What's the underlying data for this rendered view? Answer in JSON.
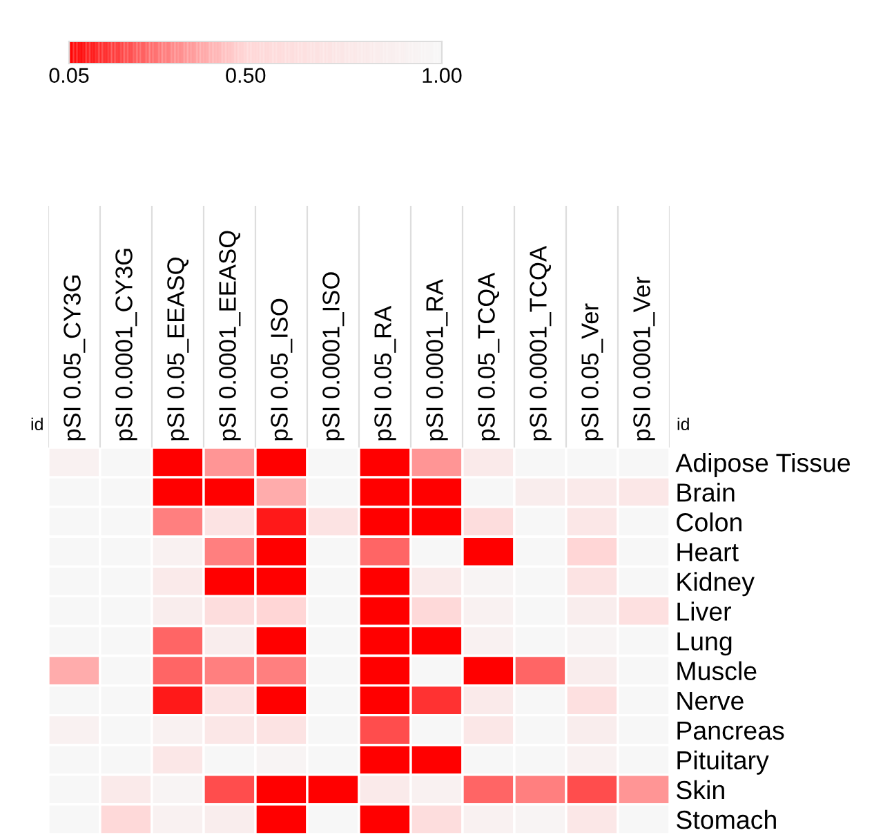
{
  "chart_data": {
    "type": "heatmap",
    "categories": [
      "pSI 0.05_CY3G",
      "pSI 0.0001_CY3G",
      "pSI 0.05_EEASQ",
      "pSI 0.0001_EEASQ",
      "pSI 0.05_ISO",
      "pSI 0.0001_ISO",
      "pSI 0.05_RA",
      "pSI 0.0001_RA",
      "pSI 0.05_TCQA",
      "pSI 0.0001_TCQA",
      "pSI 0.05_Ver",
      "pSI 0.0001_Ver"
    ],
    "y_categories": [
      "Adipose Tissue",
      "Brain",
      "Colon",
      "Heart",
      "Kidney",
      "Liver",
      "Lung",
      "Muscle",
      "Nerve",
      "Pancreas",
      "Pituitary",
      "Skin",
      "Stomach"
    ],
    "cells": [
      [
        0.9,
        1,
        0.05,
        0.35,
        0.05,
        1,
        0.05,
        0.35,
        0.8,
        1,
        1,
        1
      ],
      [
        1,
        1,
        0.05,
        0.05,
        0.4,
        1,
        0.05,
        0.05,
        1,
        0.85,
        0.8,
        0.75
      ],
      [
        1,
        1,
        0.3,
        0.7,
        0.1,
        0.7,
        0.05,
        0.05,
        0.6,
        1,
        0.75,
        1
      ],
      [
        1,
        1,
        0.9,
        0.3,
        0.05,
        1,
        0.25,
        1,
        0.05,
        1,
        0.5,
        1
      ],
      [
        1,
        1,
        0.8,
        0.05,
        0.05,
        1,
        0.05,
        0.8,
        0.95,
        1,
        0.7,
        1
      ],
      [
        1,
        1,
        0.85,
        0.6,
        0.5,
        1,
        0.05,
        0.55,
        0.9,
        1,
        0.85,
        0.65
      ],
      [
        1,
        1,
        0.25,
        0.85,
        0.05,
        1,
        0.05,
        0.05,
        0.9,
        1,
        0.95,
        1
      ],
      [
        0.4,
        1,
        0.25,
        0.3,
        0.3,
        1,
        0.05,
        1,
        0.05,
        0.25,
        0.85,
        1
      ],
      [
        1,
        1,
        0.1,
        0.7,
        0.05,
        1,
        0.05,
        0.15,
        0.8,
        1,
        0.65,
        1
      ],
      [
        0.9,
        1,
        0.9,
        0.75,
        0.7,
        1,
        0.2,
        1,
        0.75,
        1,
        0.85,
        1
      ],
      [
        1,
        1,
        0.75,
        1,
        0.95,
        1,
        0.05,
        0.05,
        1,
        1,
        0.9,
        1
      ],
      [
        1,
        0.8,
        0.95,
        0.2,
        0.05,
        0.05,
        0.8,
        0.9,
        0.25,
        0.3,
        0.2,
        0.35
      ],
      [
        1,
        0.55,
        0.9,
        0.85,
        0.05,
        1,
        0.05,
        0.6,
        0.9,
        0.95,
        0.75,
        1
      ]
    ],
    "clim": [
      0.05,
      1.0
    ],
    "cticks": [
      {
        "value": 0.05,
        "label": "0.05"
      },
      {
        "value": 0.5,
        "label": "0.50"
      },
      {
        "value": 1.0,
        "label": "1.00"
      }
    ],
    "annotations": [
      "id",
      "id"
    ]
  }
}
